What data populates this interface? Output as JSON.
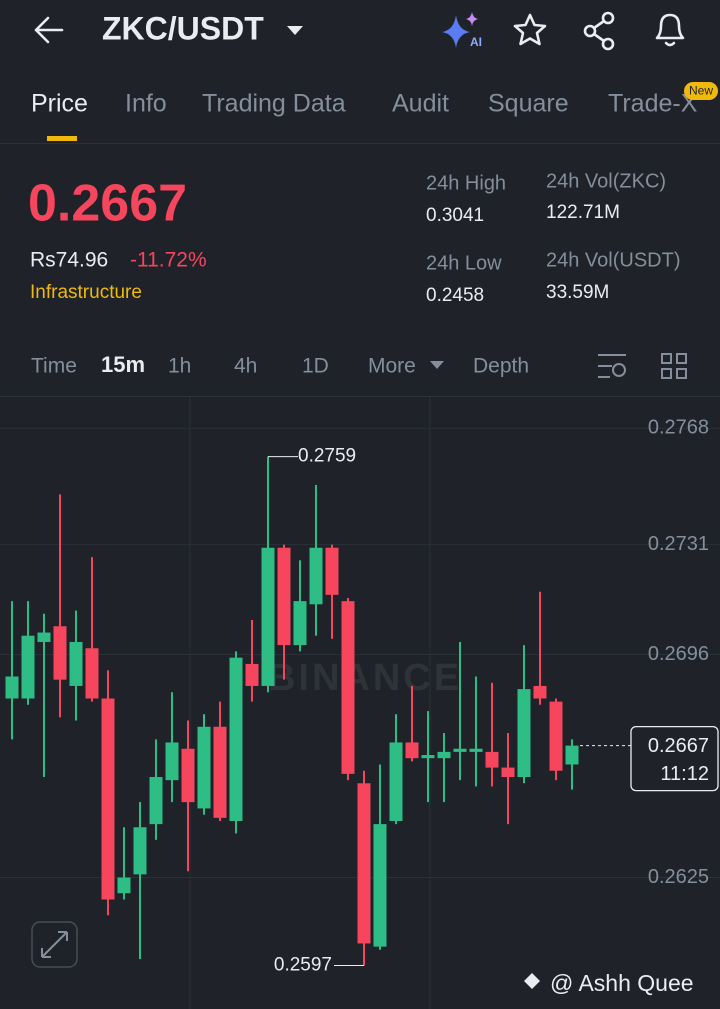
{
  "header": {
    "symbol": "ZKC/USDT"
  },
  "tabs": [
    "Price",
    "Info",
    "Trading Data",
    "Audit",
    "Square",
    "Trade-X"
  ],
  "badge": "New",
  "summary": {
    "last_price": "0.2667",
    "fiat_price": "Rs74.96",
    "change": "-11.72%",
    "tag": "Infrastructure",
    "stats": [
      {
        "label": "24h High",
        "value": "0.3041"
      },
      {
        "label": "24h Vol(ZKC)",
        "value": "122.71M"
      },
      {
        "label": "24h Low",
        "value": "0.2458"
      },
      {
        "label": "24h Vol(USDT)",
        "value": "33.59M"
      }
    ]
  },
  "intervals": [
    "Time",
    "15m",
    "1h",
    "4h",
    "1D",
    "More",
    "Depth"
  ],
  "chart": {
    "type": "candlestick",
    "watermark": "BINANCE",
    "credit": "@ Ashh Quee",
    "up_color": "#2ebd85",
    "down_color": "#f6465d",
    "ylim": [
      0.2586,
      0.2778
    ],
    "yticks": [
      0.2768,
      0.2731,
      0.2696,
      0.2625
    ],
    "countdown": "11:12",
    "open": [
      0.2682,
      0.2682,
      0.27,
      0.2705,
      0.2686,
      0.2698,
      0.2682,
      0.262,
      0.2626,
      0.2642,
      0.2656,
      0.2666,
      0.2647,
      0.2673,
      0.2643,
      0.2693,
      0.2686,
      0.273,
      0.2699,
      0.2712,
      0.273,
      0.2713,
      0.2655,
      0.2603,
      0.2643,
      0.2668,
      0.2663,
      0.2663,
      0.2665,
      0.2665,
      0.2665,
      0.266,
      0.2657,
      0.2686,
      0.2681,
      0.2661
    ],
    "high": [
      0.2713,
      0.2713,
      0.2709,
      0.2747,
      0.271,
      0.2727,
      0.2691,
      0.2641,
      0.2649,
      0.2669,
      0.2684,
      0.2675,
      0.2677,
      0.2681,
      0.2697,
      0.2707,
      0.2759,
      0.2731,
      0.2726,
      0.275,
      0.2731,
      0.2714,
      0.2659,
      0.2661,
      0.2677,
      0.2686,
      0.2678,
      0.2671,
      0.27,
      0.2689,
      0.2687,
      0.2671,
      0.2699,
      0.2716,
      0.2682,
      0.2669
    ],
    "low": [
      0.2669,
      0.268,
      0.2657,
      0.2676,
      0.2675,
      0.2681,
      0.2613,
      0.2618,
      0.2599,
      0.2637,
      0.2649,
      0.2627,
      0.2645,
      0.2643,
      0.2639,
      0.2681,
      0.2684,
      0.2688,
      0.2697,
      0.2702,
      0.2701,
      0.2656,
      0.2597,
      0.2602,
      0.2642,
      0.2662,
      0.2649,
      0.2649,
      0.2656,
      0.2654,
      0.2654,
      0.2642,
      0.2655,
      0.268,
      0.2656,
      0.2653
    ],
    "close": [
      0.2689,
      0.2702,
      0.2703,
      0.2688,
      0.27,
      0.2682,
      0.2618,
      0.2625,
      0.2641,
      0.2657,
      0.2668,
      0.2649,
      0.2673,
      0.2644,
      0.2695,
      0.2686,
      0.273,
      0.2699,
      0.2713,
      0.273,
      0.2715,
      0.2658,
      0.2604,
      0.2642,
      0.2668,
      0.2663,
      0.2664,
      0.2665,
      0.2666,
      0.2666,
      0.266,
      0.2657,
      0.2685,
      0.2682,
      0.2659,
      0.2667
    ]
  }
}
